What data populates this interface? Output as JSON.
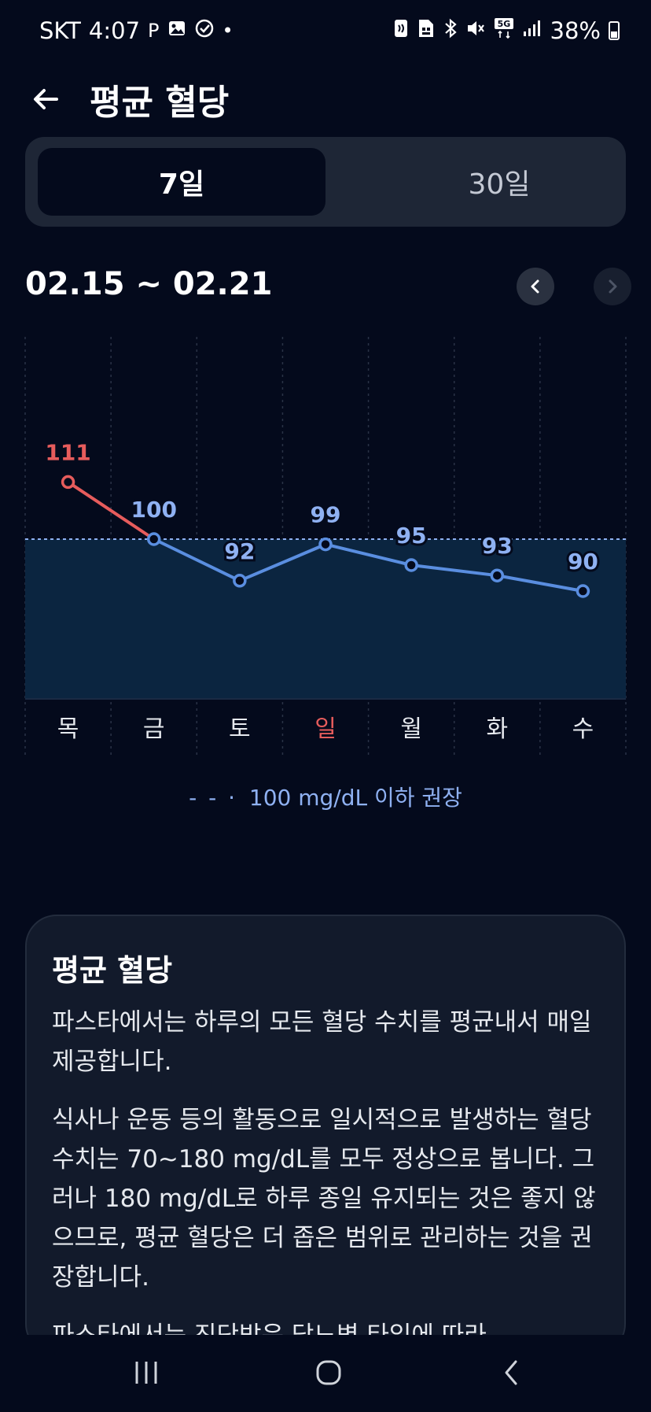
{
  "status_bar": {
    "carrier": "SKT",
    "time": "4:07",
    "notification_icons": [
      "parking-icon",
      "image-icon",
      "check-circle-icon",
      "dot-icon"
    ],
    "system_icons": [
      "nfc-icon",
      "sim-icon",
      "bluetooth-icon",
      "mute-icon",
      "5g-icon",
      "signal-icon"
    ],
    "network_badge": "5G",
    "battery": "38%"
  },
  "header": {
    "title": "평균 혈당"
  },
  "tabs": [
    {
      "label": "7일",
      "selected": true
    },
    {
      "label": "30일",
      "selected": false
    }
  ],
  "date_range": "02.15 ~ 02.21",
  "chart_data": {
    "type": "line",
    "categories": [
      "목",
      "금",
      "토",
      "일",
      "월",
      "화",
      "수"
    ],
    "values": [
      111,
      100,
      92,
      99,
      95,
      93,
      90
    ],
    "threshold": 100,
    "highlight_category": "일",
    "colors": {
      "above_threshold": "#e65c5c",
      "normal": "#5a8ee0",
      "label_normal": "#8fb1f2",
      "sunday": "#e65c5c",
      "threshold_band": "#0b2540"
    }
  },
  "legend_text": "100 mg/dL 이하 권장",
  "info_card": {
    "title": "평균 혈당",
    "paragraphs": [
      "파스타에서는 하루의 모든 혈당 수치를 평균내서 매일 제공합니다.",
      "식사나 운동 등의 활동으로 일시적으로 발생하는 혈당 수치는 70~180 mg/dL를 모두 정상으로 봅니다. 그러나 180 mg/dL로 하루 종일 유지되는 것은 좋지 않으므로, 평균 혈당은 더 좁은 범위로 관리하는 것을 권장합니다.",
      "파스타에서는 진단받은 당뇨병 타입에 따라"
    ]
  },
  "nav_bar": {
    "buttons": [
      "recent-apps",
      "home",
      "back"
    ]
  }
}
